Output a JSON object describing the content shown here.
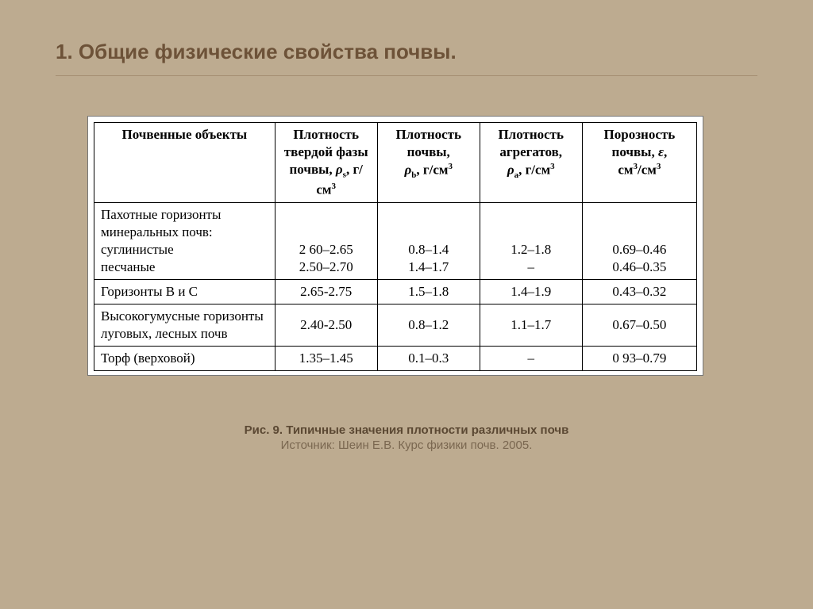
{
  "colors": {
    "background": "#bdab90",
    "table_bg": "#ffffff",
    "title_color": "#6d5238",
    "border_color": "#000000",
    "caption_color": "#5b4833"
  },
  "title": "1. Общие физические свойства почвы.",
  "table": {
    "columns": [
      {
        "plain": "Почвенные объекты"
      },
      {
        "html": "Плотность твердой фазы почвы, <span class='i'>ρ</span><sub>s</sub>, г/см<sup>3</sup>"
      },
      {
        "html": "Плотность почвы,<br><span class='i'>ρ</span><sub>b</sub>, г/см<sup>3</sup>"
      },
      {
        "html": "Плотность агрегатов,<br><span class='i'>ρ</span><sub>а</sub>, г/см<sup>3</sup>"
      },
      {
        "html": "Порозность почвы, <span class='i'>ε</span>,<br>см<sup>3</sup>/см<sup>3</sup>"
      }
    ],
    "rows": [
      {
        "label": "Пахотные горизонты минеральных почв:<br>суглинистые<br>песчаные",
        "c1": "2 60–2.65<br>2.50–2.70",
        "c2": "0.8–1.4<br>1.4–1.7",
        "c3": "1.2–1.8<br>–",
        "c4": "0.69–0.46<br>0.46–0.35",
        "align": "btm"
      },
      {
        "label": "Горизонты B и C",
        "c1": "2.65-2.75",
        "c2": "1.5–1.8",
        "c3": "1.4–1.9",
        "c4": "0.43–0.32",
        "align": "mid"
      },
      {
        "label": "Высокогумусные горизонты луговых, лесных почв",
        "c1": "2.40-2.50",
        "c2": "0.8–1.2",
        "c3": "1.1–1.7",
        "c4": "0.67–0.50",
        "align": "mid"
      },
      {
        "label": "Торф (верховой)",
        "c1": "1.35–1.45",
        "c2": "0.1–0.3",
        "c3": "–",
        "c4": "0 93–0.79",
        "align": "mid"
      }
    ]
  },
  "caption": {
    "bold": "Рис. 9.  Типичные значения плотности различных почв",
    "source": "Источник: Шеин Е.В. Курс физики почв. 2005."
  }
}
